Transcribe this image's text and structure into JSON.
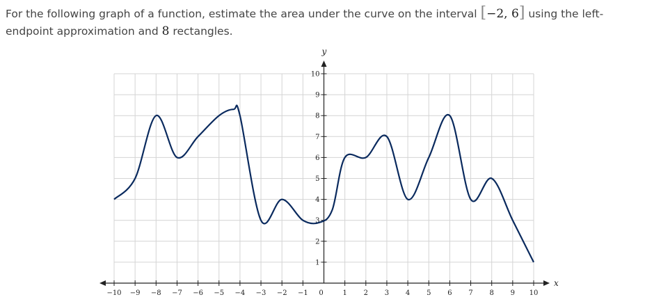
{
  "question": {
    "part1": "For the following graph of a function, estimate the area under the curve on the interval ",
    "interval_open": "[",
    "interval_values": "−2, 6",
    "interval_close": "]",
    "part2": " using the left-endpoint approximation and ",
    "rect_count": "8",
    "part3": " rectangles."
  },
  "chart_data": {
    "type": "line",
    "title": "",
    "xlabel": "x",
    "ylabel": "y",
    "xlim": [
      -10,
      10
    ],
    "ylim": [
      0,
      10
    ],
    "grid": true,
    "x_ticks": [
      -10,
      -9,
      -8,
      -7,
      -6,
      -5,
      -4,
      -3,
      -2,
      -1,
      0,
      1,
      2,
      3,
      4,
      5,
      6,
      7,
      8,
      9,
      10
    ],
    "x_tick_labels": [
      "−10",
      "−9",
      "−8",
      "−7",
      "−6",
      "−5",
      "−4",
      "−3",
      "−2",
      "−1",
      "0",
      "1",
      "2",
      "3",
      "4",
      "5",
      "6",
      "7",
      "8",
      "9",
      "10"
    ],
    "y_ticks": [
      1,
      2,
      3,
      4,
      5,
      6,
      7,
      8,
      9,
      10
    ],
    "y_tick_labels": [
      "1",
      "2",
      "3",
      "4",
      "5",
      "6",
      "7",
      "8",
      "9",
      "10"
    ],
    "series": [
      {
        "color": "#0a2a5e",
        "points": [
          [
            -10,
            4
          ],
          [
            -9,
            5
          ],
          [
            -8,
            8
          ],
          [
            -7,
            6
          ],
          [
            -6,
            7
          ],
          [
            -5,
            8
          ],
          [
            -4.3,
            8.3
          ],
          [
            -4,
            8
          ],
          [
            -3,
            3
          ],
          [
            -2,
            4
          ],
          [
            -1,
            3
          ],
          [
            -0.2,
            2.9
          ],
          [
            0.4,
            3.5
          ],
          [
            1,
            6
          ],
          [
            2,
            6
          ],
          [
            3,
            7
          ],
          [
            4,
            4
          ],
          [
            5,
            6
          ],
          [
            6,
            8
          ],
          [
            7,
            4
          ],
          [
            8,
            5
          ],
          [
            9,
            3
          ],
          [
            10,
            1
          ]
        ]
      }
    ]
  }
}
